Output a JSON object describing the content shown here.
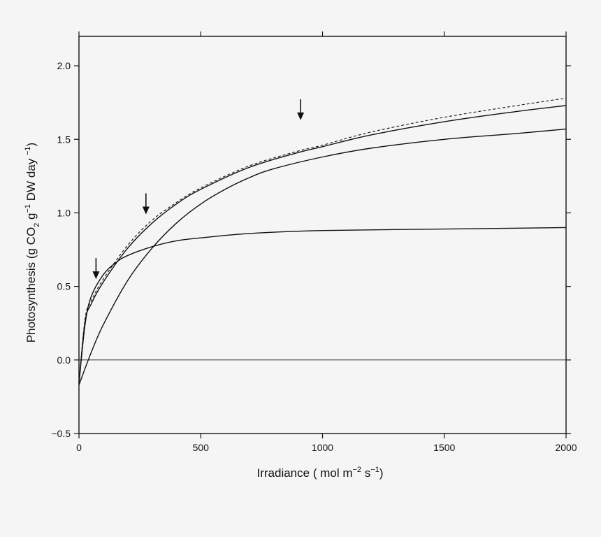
{
  "chart_data": {
    "type": "line",
    "xlabel": {
      "main": "Irradiance ( mol m",
      "exp1": "−2",
      "mid": " s",
      "exp2": "−1",
      "end": ")"
    },
    "ylabel": {
      "part1": "Photosynthesis (g CO",
      "sub": "2",
      "part2": " g",
      "exp1": "−1",
      "part3": " DW day ",
      "exp2": "−1",
      "part4": ")"
    },
    "xlim": [
      0,
      2000
    ],
    "ylim": [
      -0.5,
      2.2
    ],
    "x_ticks": [
      0,
      500,
      1000,
      1500,
      2000
    ],
    "y_ticks": [
      -0.5,
      0.0,
      0.5,
      1.0,
      1.5,
      2.0
    ],
    "x_tick_labels": [
      "0",
      "500",
      "1000",
      "1500",
      "2000"
    ],
    "y_tick_labels": [
      "−0.5",
      "0.0",
      "0.5",
      "1.0",
      "1.5",
      "2.0"
    ],
    "grid": false,
    "series": [
      {
        "style": "solid",
        "x": [
          0,
          25,
          50,
          100,
          150,
          200,
          300,
          400,
          500,
          700,
          1000,
          1500,
          2000
        ],
        "y": [
          -0.16,
          0.24,
          0.43,
          0.58,
          0.66,
          0.71,
          0.77,
          0.81,
          0.83,
          0.86,
          0.88,
          0.89,
          0.9
        ]
      },
      {
        "style": "solid",
        "x": [
          0,
          50,
          100,
          200,
          300,
          400,
          500,
          600,
          700,
          800,
          1000,
          1200,
          1500,
          1800,
          2000
        ],
        "y": [
          -0.17,
          0.05,
          0.24,
          0.54,
          0.76,
          0.93,
          1.06,
          1.16,
          1.24,
          1.3,
          1.38,
          1.44,
          1.5,
          1.54,
          1.57
        ]
      },
      {
        "style": "solid",
        "x": [
          0,
          25,
          50,
          100,
          200,
          300,
          400,
          500,
          700,
          900,
          1000,
          1200,
          1500,
          1800,
          2000
        ],
        "y": [
          -0.16,
          0.26,
          0.38,
          0.53,
          0.76,
          0.93,
          1.06,
          1.16,
          1.31,
          1.41,
          1.45,
          1.53,
          1.62,
          1.69,
          1.73
        ]
      },
      {
        "style": "dashed",
        "x": [
          0,
          25,
          50,
          100,
          200,
          300,
          400,
          500,
          700,
          900,
          1000,
          1200,
          1500,
          1800,
          2000
        ],
        "y": [
          -0.16,
          0.28,
          0.4,
          0.55,
          0.78,
          0.95,
          1.07,
          1.17,
          1.32,
          1.42,
          1.46,
          1.55,
          1.65,
          1.73,
          1.78
        ]
      }
    ],
    "zero_line": 0.0,
    "annotations": [
      {
        "kind": "arrow-down",
        "x": 70,
        "y": 0.55
      },
      {
        "kind": "arrow-down",
        "x": 275,
        "y": 0.99
      },
      {
        "kind": "arrow-down",
        "x": 910,
        "y": 1.63
      }
    ]
  }
}
